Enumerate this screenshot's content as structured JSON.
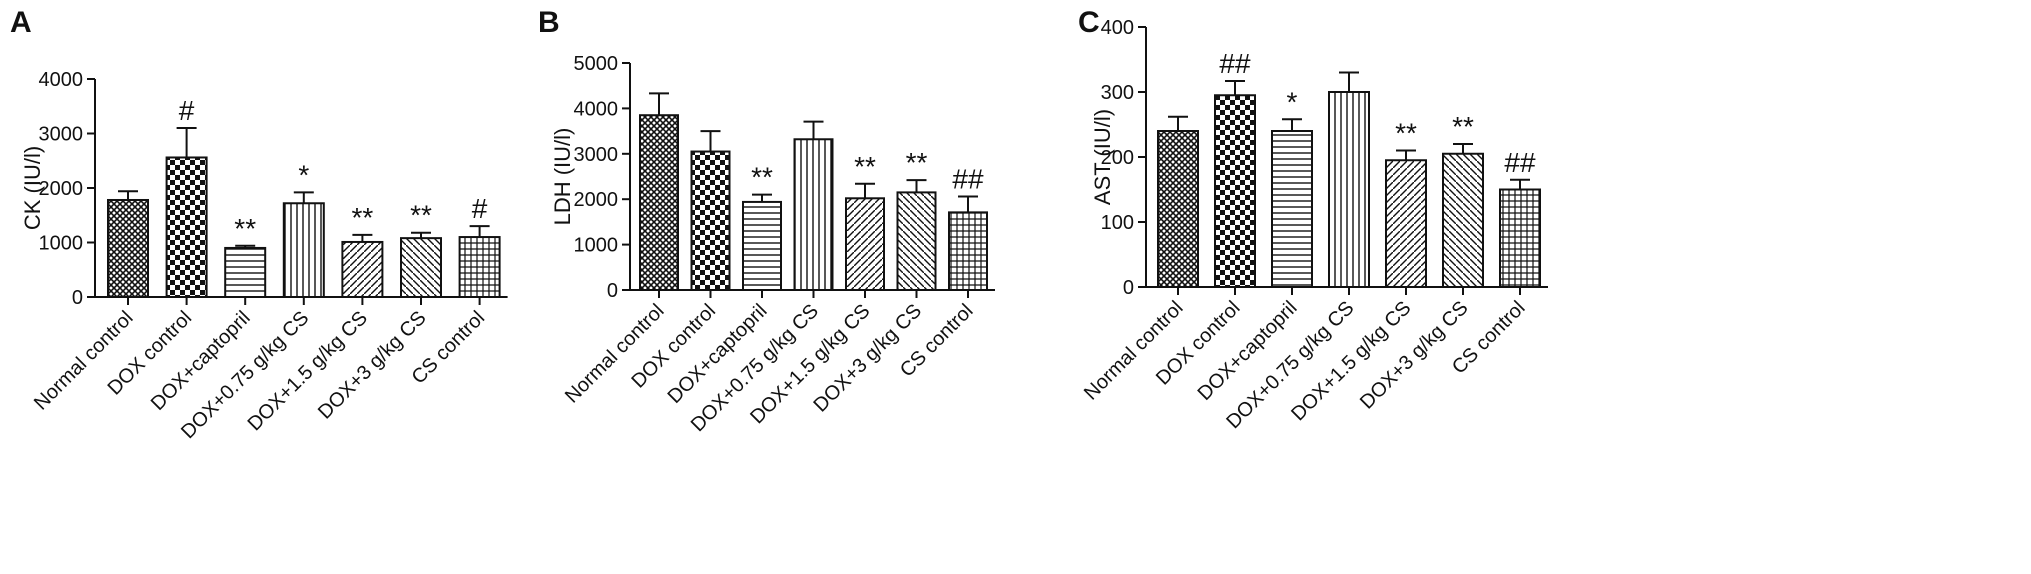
{
  "chart_data": [
    {
      "type": "bar",
      "panel": "A",
      "ylabel": "CK (IU/l)",
      "ylim": [
        0,
        4000
      ],
      "yticks": [
        "0",
        "1000",
        "2000",
        "3000",
        "4000"
      ],
      "categories": [
        "Normal control",
        "DOX control",
        "DOX+captopril",
        "DOX+0.75 g/kg CS",
        "DOX+1.5 g/kg CS",
        "DOX+3 g/kg CS",
        "CS control"
      ],
      "values": [
        1780,
        2560,
        900,
        1720,
        1010,
        1080,
        1100
      ],
      "errors": [
        160,
        540,
        40,
        200,
        130,
        100,
        200
      ],
      "annotations": [
        "",
        "#",
        "**",
        "*",
        "**",
        "**",
        "#"
      ],
      "grid": false,
      "legend": "none"
    },
    {
      "type": "bar",
      "panel": "B",
      "ylabel": "LDH (IU/l)",
      "ylim": [
        0,
        5000
      ],
      "yticks": [
        "0",
        "1000",
        "2000",
        "3000",
        "4000",
        "5000"
      ],
      "categories": [
        "Normal control",
        "DOX control",
        "DOX+captopril",
        "DOX+0.75 g/kg CS",
        "DOX+1.5 g/kg CS",
        "DOX+3 g/kg CS",
        "CS control"
      ],
      "values": [
        3850,
        3050,
        1940,
        3320,
        2020,
        2150,
        1710
      ],
      "errors": [
        480,
        450,
        160,
        390,
        320,
        270,
        350
      ],
      "annotations": [
        "",
        "",
        "**",
        "",
        "**",
        "**",
        "##"
      ],
      "grid": false,
      "legend": "none"
    },
    {
      "type": "bar",
      "panel": "C",
      "ylabel": "AST (IU/l)",
      "ylim": [
        0,
        400
      ],
      "yticks": [
        "0",
        "100",
        "200",
        "300",
        "400"
      ],
      "categories": [
        "Normal control",
        "DOX control",
        "DOX+captopril",
        "DOX+0.75 g/kg CS",
        "DOX+1.5 g/kg CS",
        "DOX+3 g/kg CS",
        "CS control"
      ],
      "values": [
        240,
        295,
        240,
        300,
        195,
        205,
        150
      ],
      "errors": [
        22,
        22,
        18,
        30,
        15,
        15,
        15
      ],
      "annotations": [
        "",
        "##",
        "*",
        "",
        "**",
        "**",
        "##"
      ],
      "grid": false,
      "legend": "none"
    }
  ]
}
